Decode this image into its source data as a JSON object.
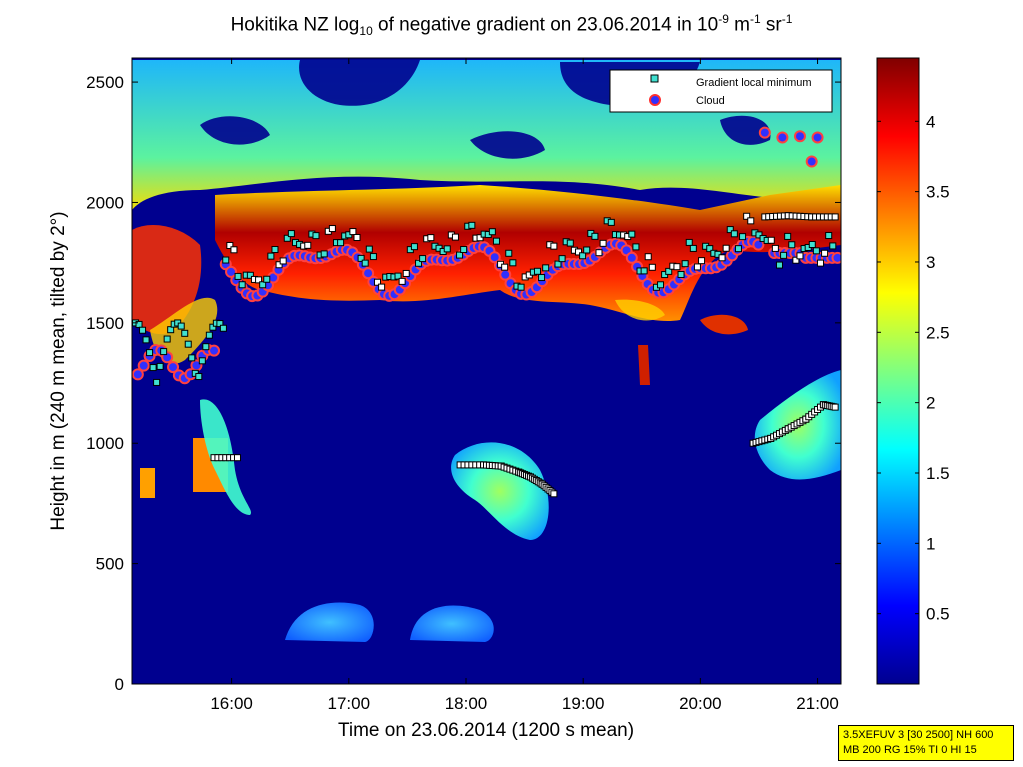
{
  "title": {
    "prefix": "Hokitika NZ log",
    "sub": "10",
    "middle": " of negative gradient on 23.06.2014 in 10",
    "sup1": "-9",
    "unit1": " m",
    "sup2": "-1",
    "unit2": " sr",
    "sup3": "-1"
  },
  "info_box": {
    "line1": "3.5XEFUV 3 [30 2500] NH 600",
    "line2": "MB 200 RG 15% TI 0 HI 15"
  },
  "colors": {
    "background_low": "#00008f",
    "marker_square_fill": "#40e0d0",
    "marker_cloud_fill": "#3030ff",
    "marker_cloud_edge": "#ff3030",
    "info_box": "#ffff00"
  },
  "chart_data": {
    "type": "heatmap",
    "title": "Hokitika NZ log10 of negative gradient on 23.06.2014 in 10^-9 m^-1 sr^-1",
    "xlabel": "Time on 23.06.2014 (1200 s mean)",
    "ylabel": "Height in m (240 m mean, tilted by 2°)",
    "x_ticks": [
      "16:00",
      "17:00",
      "18:00",
      "19:00",
      "20:00",
      "21:00"
    ],
    "x_tick_hours": [
      16,
      17,
      18,
      19,
      20,
      21
    ],
    "xlim_hours": [
      15.15,
      21.2
    ],
    "y_ticks": [
      0,
      500,
      1000,
      1500,
      2000,
      2500
    ],
    "ylim": [
      0,
      2600
    ],
    "colorbar": {
      "colormap": "jet",
      "ticks": [
        0.5,
        1,
        1.5,
        2,
        2.5,
        3,
        3.5,
        4
      ],
      "range": [
        0,
        4.45
      ]
    },
    "legend": {
      "placement": "top-right",
      "entries": [
        "Gradient local minimum",
        "Cloud"
      ]
    },
    "grid": false,
    "features": [
      {
        "name": "main cloud layer",
        "t_start": 15.9,
        "t_end": 21.2,
        "top_m": 2050,
        "bottom_m": 1600,
        "value": 4.0
      },
      {
        "name": "upper aerosol band",
        "t_start": 15.15,
        "t_end": 21.2,
        "top_m": 2500,
        "bottom_m": 2050,
        "value": 1.8
      },
      {
        "name": "blob near 18:30",
        "t_center": 18.6,
        "height_m": 850,
        "value": 1.7
      },
      {
        "name": "blob after 20:30",
        "t_center": 20.9,
        "height_m": 1050,
        "value": 1.6
      },
      {
        "name": "surface layer",
        "t_start": 16.4,
        "t_end": 18.2,
        "height_m": 250,
        "value": 1.0
      }
    ],
    "gradient_minimum_tracks": [
      {
        "t": [
          17.95,
          18.15,
          18.3,
          18.45,
          18.55,
          18.65,
          18.75
        ],
        "h": [
          910,
          910,
          905,
          880,
          860,
          830,
          790
        ]
      },
      {
        "t": [
          20.45,
          20.6,
          20.75,
          20.9,
          21.05,
          21.15
        ],
        "h": [
          1000,
          1020,
          1060,
          1100,
          1160,
          1150
        ]
      },
      {
        "t": [
          20.55,
          20.75,
          20.95,
          21.15
        ],
        "h": [
          1940,
          1945,
          1940,
          1940
        ]
      },
      {
        "t": [
          15.85,
          16.05
        ],
        "h": [
          940,
          940
        ]
      }
    ]
  }
}
